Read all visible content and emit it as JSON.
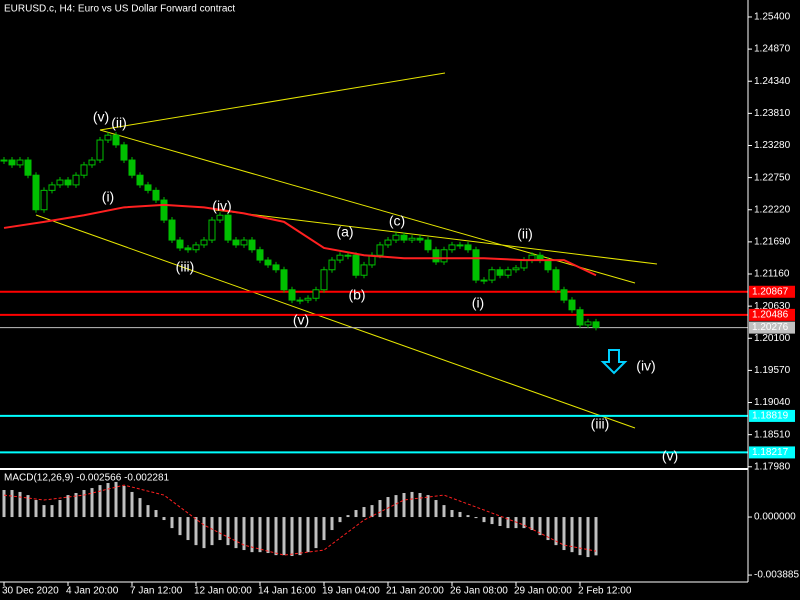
{
  "chart_data": {
    "type": "candlestick",
    "title": "EURUSD.c, H4:  Euro vs US Dollar Forward contract",
    "categories": [
      "30 Dec 2020",
      null,
      null,
      null,
      null,
      null,
      null,
      null,
      "4 Jan 20:00",
      null,
      null,
      null,
      null,
      null,
      null,
      null,
      "7 Jan 12:00",
      null,
      null,
      null,
      null,
      null,
      null,
      null,
      "12 Jan 00:00",
      null,
      null,
      null,
      null,
      null,
      null,
      null,
      "14 Jan 16:00",
      null,
      null,
      null,
      null,
      null,
      null,
      null,
      "19 Jan 04:00",
      null,
      null,
      null,
      null,
      null,
      null,
      null,
      "21 Jan 20:00",
      null,
      null,
      null,
      null,
      null,
      null,
      null,
      "26 Jan 08:00",
      null,
      null,
      null,
      null,
      null,
      null,
      null,
      "29 Jan 00:00",
      null,
      null,
      null,
      null,
      null,
      null,
      null,
      "2 Feb 12:00",
      null,
      null
    ],
    "close": [
      1.2304,
      1.2296,
      1.2304,
      1.2279,
      1.2222,
      1.2254,
      1.2263,
      1.2271,
      1.2263,
      1.2279,
      1.2296,
      1.2304,
      1.2337,
      1.2345,
      1.2329,
      1.2304,
      1.2279,
      1.2263,
      1.2254,
      1.2238,
      1.2205,
      1.2172,
      1.2159,
      1.2156,
      1.2164,
      1.2172,
      1.2205,
      1.2213,
      1.2172,
      1.2164,
      1.2172,
      1.2156,
      1.2139,
      1.2131,
      1.2123,
      1.209,
      1.2073,
      1.2073,
      1.2076,
      1.209,
      1.2123,
      1.2139,
      1.2147,
      1.2147,
      1.2114,
      1.2131,
      1.2147,
      1.2164,
      1.2172,
      1.218,
      1.2172,
      1.2175,
      1.2172,
      1.2156,
      1.2136,
      1.2156,
      1.2164,
      1.2164,
      1.2156,
      1.2106,
      1.2106,
      1.2123,
      1.2114,
      1.2123,
      1.2126,
      1.2139,
      1.2147,
      1.2139,
      1.2123,
      1.209,
      1.2073,
      1.2057,
      1.2032,
      1.2037,
      1.2028
    ],
    "color": "#00c000",
    "ylim": [
      1.1796,
      1.2568
    ],
    "yticks": [
      {
        "value": 1.254,
        "label": "1.25400"
      },
      {
        "value": 1.2487,
        "label": "1.24870"
      },
      {
        "value": 1.2434,
        "label": "1.24340"
      },
      {
        "value": 1.2381,
        "label": "1.23810"
      },
      {
        "value": 1.2328,
        "label": "1.23280"
      },
      {
        "value": 1.2275,
        "label": "1.22750"
      },
      {
        "value": 1.2222,
        "label": "1.22220"
      },
      {
        "value": 1.2169,
        "label": "1.21690"
      },
      {
        "value": 1.2116,
        "label": "1.21160"
      },
      {
        "value": 1.2063,
        "label": "1.20630"
      },
      {
        "value": 1.201,
        "label": "1.20100"
      },
      {
        "value": 1.1957,
        "label": "1.19570"
      },
      {
        "value": 1.1904,
        "label": "1.19040"
      },
      {
        "value": 1.1851,
        "label": "1.18510"
      },
      {
        "value": 1.1798,
        "label": "1.17980"
      }
    ],
    "levels": [
      {
        "value": 1.20867,
        "color": "#ff0000"
      },
      {
        "value": 1.20486,
        "color": "#ff0000"
      },
      {
        "value": 1.20276,
        "color": "#c0c0c0"
      },
      {
        "value": 1.18819,
        "color": "#00ffff"
      },
      {
        "value": 1.18217,
        "color": "#00ffff"
      }
    ],
    "moving_average": {
      "x": [
        0,
        5,
        10,
        15,
        20,
        25,
        30,
        35,
        40,
        45,
        50,
        55,
        60,
        65,
        70,
        74
      ],
      "values": [
        1.2192,
        1.2202,
        1.2213,
        1.2226,
        1.223,
        1.2226,
        1.2216,
        1.2202,
        1.2159,
        1.2147,
        1.2142,
        1.2142,
        1.2142,
        1.2139,
        1.2139,
        1.2114
      ],
      "color": "#ff2020"
    },
    "annotations": [
      {
        "text": "(v)",
        "color": "#ffffff"
      },
      {
        "text": "(ii)",
        "color": "#ffffff"
      },
      {
        "text": "(i)",
        "color": "#ffffff"
      },
      {
        "text": "(iv)",
        "color": "#ffffff"
      },
      {
        "text": "(iii)",
        "color": "#ffffff"
      },
      {
        "text": "(v)",
        "color": "#ffffff"
      },
      {
        "text": "(a)",
        "color": "#ffd700"
      },
      {
        "text": "(b)",
        "color": "#ffd700"
      },
      {
        "text": "(c)",
        "color": "#ffd700"
      },
      {
        "text": "(ii)",
        "color": "#ffffff"
      },
      {
        "text": "(i)",
        "color": "#ffffff"
      },
      {
        "text": "(iv)",
        "color": "#ffffff"
      },
      {
        "text": "(iii)",
        "color": "#ffffff"
      },
      {
        "text": "(v)",
        "color": "#ffffff"
      }
    ],
    "macd": {
      "label": "MACD(12,26,9) -0.002566 -0.002281",
      "histogram": [
        0.00181,
        0.00181,
        0.00168,
        0.00147,
        0.00114,
        0.0008,
        0.0008,
        0.00114,
        0.00147,
        0.00161,
        0.00181,
        0.00194,
        0.00214,
        0.00228,
        0.00235,
        0.00208,
        0.00168,
        0.00127,
        0.0008,
        0.00047,
        -0.0002,
        -0.00074,
        -0.00121,
        -0.00154,
        -0.00188,
        -0.00208,
        -0.00188,
        -0.00154,
        -0.00188,
        -0.00208,
        -0.00221,
        -0.00235,
        -0.00235,
        -0.00241,
        -0.00255,
        -0.00255,
        -0.00261,
        -0.00255,
        -0.00235,
        -0.00208,
        -0.00154,
        -0.00087,
        -0.00034,
        0.00013,
        0.00047,
        0.00067,
        0.0008,
        0.00114,
        0.00134,
        0.00147,
        0.00161,
        0.00168,
        0.00161,
        0.00147,
        0.00114,
        0.0008,
        0.00047,
        0.00034,
        0.00013,
        -7e-05,
        -0.00034,
        -0.00047,
        -0.0006,
        -0.00074,
        -0.00074,
        -0.00074,
        -0.00087,
        -0.00121,
        -0.00154,
        -0.00188,
        -0.00221,
        -0.00235,
        -0.00255,
        -0.00268,
        -0.002566
      ],
      "histogram_color": "#c0c0c0",
      "signal": {
        "x": [
          0,
          5,
          10,
          15,
          20,
          25,
          30,
          35,
          40,
          45,
          50,
          55,
          60,
          65,
          70,
          74
        ],
        "values": [
          0.00147,
          0.00114,
          0.00147,
          0.00214,
          0.00147,
          -0.00054,
          -0.00188,
          -0.00255,
          -0.00221,
          -0.0002,
          0.00114,
          0.00147,
          0.00047,
          -0.00054,
          -0.00188,
          -0.002281
        ],
        "color": "#ff2020"
      },
      "ylim": [
        -0.00435,
        0.00315
      ],
      "yticks": [
        {
          "value": 0,
          "label": "0.000000"
        },
        {
          "value": -0.003885,
          "label": "-0.003885"
        }
      ]
    }
  }
}
